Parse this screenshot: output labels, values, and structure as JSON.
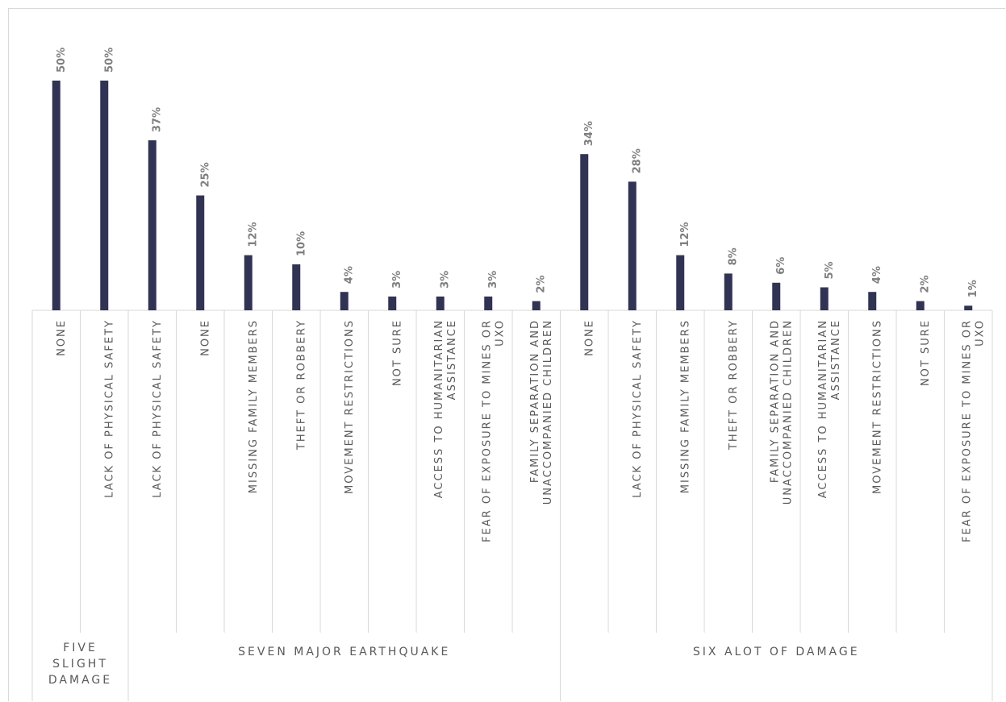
{
  "chart_data": {
    "type": "bar",
    "title": "",
    "xlabel": "",
    "ylabel": "",
    "ylim": [
      0,
      0.5
    ],
    "grid": false,
    "legend": "none",
    "bar_color": "#303353",
    "groups": [
      {
        "name": [
          "FIVE",
          "SLIGHT",
          "DAMAGE"
        ],
        "categories": [
          {
            "label": [
              "NONE"
            ],
            "value": 0.5,
            "value_label": "50%"
          },
          {
            "label": [
              "LACK OF PHYSICAL SAFETY"
            ],
            "value": 0.5,
            "value_label": "50%"
          }
        ]
      },
      {
        "name": [
          "SEVEN MAJOR EARTHQUAKE"
        ],
        "categories": [
          {
            "label": [
              "LACK OF PHYSICAL SAFETY"
            ],
            "value": 0.37,
            "value_label": "37%"
          },
          {
            "label": [
              "NONE"
            ],
            "value": 0.25,
            "value_label": "25%"
          },
          {
            "label": [
              "MISSING FAMILY MEMBERS"
            ],
            "value": 0.12,
            "value_label": "12%"
          },
          {
            "label": [
              "THEFT OR ROBBERY"
            ],
            "value": 0.1,
            "value_label": "10%"
          },
          {
            "label": [
              "MOVEMENT RESTRICTIONS"
            ],
            "value": 0.04,
            "value_label": "4%"
          },
          {
            "label": [
              "NOT SURE"
            ],
            "value": 0.03,
            "value_label": "3%"
          },
          {
            "label": [
              "ACCESS TO HUMANITARIAN",
              "ASSISTANCE"
            ],
            "value": 0.03,
            "value_label": "3%"
          },
          {
            "label": [
              "FEAR OF EXPOSURE TO MINES OR",
              "UXO"
            ],
            "value": 0.03,
            "value_label": "3%"
          },
          {
            "label": [
              "FAMILY SEPARATION AND",
              "UNACCOMPANIED CHILDREN"
            ],
            "value": 0.02,
            "value_label": "2%"
          }
        ]
      },
      {
        "name": [
          "SIX ALOT OF DAMAGE"
        ],
        "categories": [
          {
            "label": [
              "NONE"
            ],
            "value": 0.34,
            "value_label": "34%"
          },
          {
            "label": [
              "LACK OF PHYSICAL SAFETY"
            ],
            "value": 0.28,
            "value_label": "28%"
          },
          {
            "label": [
              "MISSING FAMILY MEMBERS"
            ],
            "value": 0.12,
            "value_label": "12%"
          },
          {
            "label": [
              "THEFT OR ROBBERY"
            ],
            "value": 0.08,
            "value_label": "8%"
          },
          {
            "label": [
              "FAMILY SEPARATION AND",
              "UNACCOMPANIED CHILDREN"
            ],
            "value": 0.06,
            "value_label": "6%"
          },
          {
            "label": [
              "ACCESS TO HUMANITARIAN",
              "ASSISTANCE"
            ],
            "value": 0.05,
            "value_label": "5%"
          },
          {
            "label": [
              "MOVEMENT RESTRICTIONS"
            ],
            "value": 0.04,
            "value_label": "4%"
          },
          {
            "label": [
              "NOT SURE"
            ],
            "value": 0.02,
            "value_label": "2%"
          },
          {
            "label": [
              "FEAR OF EXPOSURE TO MINES OR",
              "UXO"
            ],
            "value": 0.01,
            "value_label": "1%"
          }
        ]
      }
    ]
  }
}
